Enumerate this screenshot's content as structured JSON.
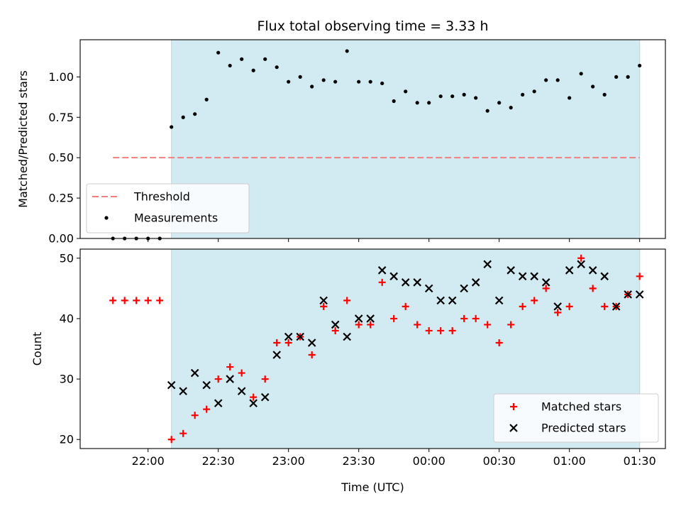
{
  "chart_data": [
    {
      "type": "scatter",
      "title": "Flux total observing time = 3.33 h",
      "xlabel": "",
      "ylabel": "Matched/Predicted stars",
      "ylim": [
        0,
        1.23
      ],
      "ytick_labels": [
        "0.00",
        "0.25",
        "0.50",
        "0.75",
        "1.00"
      ],
      "yticks": [
        0,
        0.25,
        0.5,
        0.75,
        1.0
      ],
      "xlim": [
        "21:31",
        "01:41"
      ],
      "shaded_region": {
        "start": "22:10",
        "end": "01:30",
        "color": "#add8e6"
      },
      "legend_position": "lower-left",
      "threshold": {
        "name": "Threshold",
        "value": 0.5,
        "start": "21:45",
        "end": "01:30",
        "color": "#f08080"
      },
      "series": [
        {
          "name": "Measurements",
          "color": "#000000",
          "x": [
            "21:45",
            "21:50",
            "21:55",
            "22:00",
            "22:05",
            "22:10",
            "22:15",
            "22:20",
            "22:25",
            "22:30",
            "22:35",
            "22:40",
            "22:45",
            "22:50",
            "22:55",
            "23:00",
            "23:05",
            "23:10",
            "23:15",
            "23:20",
            "23:25",
            "23:30",
            "23:35",
            "23:40",
            "23:45",
            "23:50",
            "23:55",
            "00:00",
            "00:05",
            "00:10",
            "00:15",
            "00:20",
            "00:25",
            "00:30",
            "00:35",
            "00:40",
            "00:45",
            "00:50",
            "00:55",
            "01:00",
            "01:05",
            "01:10",
            "01:15",
            "01:20",
            "01:25",
            "01:30"
          ],
          "values": [
            0,
            0,
            0,
            0,
            0,
            0.69,
            0.75,
            0.77,
            0.86,
            1.15,
            1.07,
            1.11,
            1.04,
            1.11,
            1.06,
            0.97,
            1.0,
            0.94,
            0.98,
            0.97,
            1.16,
            0.97,
            0.97,
            0.96,
            0.85,
            0.91,
            0.84,
            0.84,
            0.88,
            0.88,
            0.89,
            0.87,
            0.79,
            0.84,
            0.81,
            0.89,
            0.91,
            0.98,
            0.98,
            0.87,
            1.02,
            0.94,
            0.89,
            1.0,
            1.0,
            1.07
          ]
        }
      ]
    },
    {
      "type": "scatter",
      "title": "",
      "xlabel": "Time (UTC)",
      "ylabel": "Count",
      "ylim": [
        18.5,
        51.5
      ],
      "ytick_labels": [
        "20",
        "30",
        "40",
        "50"
      ],
      "yticks": [
        20,
        30,
        40,
        50
      ],
      "xlim": [
        "21:31",
        "01:41"
      ],
      "xtick_labels": [
        "22:00",
        "22:30",
        "23:00",
        "23:30",
        "00:00",
        "00:30",
        "01:00",
        "01:30"
      ],
      "shaded_region": {
        "start": "22:10",
        "end": "01:30",
        "color": "#add8e6"
      },
      "legend_position": "lower-right",
      "series": [
        {
          "name": "Matched stars",
          "marker": "plus",
          "color": "#ff0000",
          "x": [
            "21:45",
            "21:50",
            "21:55",
            "22:00",
            "22:05",
            "22:10",
            "22:15",
            "22:20",
            "22:25",
            "22:30",
            "22:35",
            "22:40",
            "22:45",
            "22:50",
            "22:55",
            "23:00",
            "23:05",
            "23:10",
            "23:15",
            "23:20",
            "23:25",
            "23:30",
            "23:35",
            "23:40",
            "23:45",
            "23:50",
            "23:55",
            "00:00",
            "00:05",
            "00:10",
            "00:15",
            "00:20",
            "00:25",
            "00:30",
            "00:35",
            "00:40",
            "00:45",
            "00:50",
            "00:55",
            "01:00",
            "01:05",
            "01:10",
            "01:15",
            "01:20",
            "01:25",
            "01:30"
          ],
          "values": [
            43,
            43,
            43,
            43,
            43,
            20,
            21,
            24,
            25,
            30,
            32,
            31,
            27,
            30,
            36,
            36,
            37,
            34,
            42,
            38,
            43,
            39,
            39,
            46,
            40,
            42,
            39,
            38,
            38,
            38,
            40,
            40,
            39,
            36,
            39,
            42,
            43,
            45,
            41,
            42,
            50,
            45,
            42,
            42,
            44,
            47
          ]
        },
        {
          "name": "Predicted stars",
          "marker": "x",
          "color": "#000000",
          "x": [
            "22:10",
            "22:15",
            "22:20",
            "22:25",
            "22:30",
            "22:35",
            "22:40",
            "22:45",
            "22:50",
            "22:55",
            "23:00",
            "23:05",
            "23:10",
            "23:15",
            "23:20",
            "23:25",
            "23:30",
            "23:35",
            "23:40",
            "23:45",
            "23:50",
            "23:55",
            "00:00",
            "00:05",
            "00:10",
            "00:15",
            "00:20",
            "00:25",
            "00:30",
            "00:35",
            "00:40",
            "00:45",
            "00:50",
            "00:55",
            "01:00",
            "01:05",
            "01:10",
            "01:15",
            "01:20",
            "01:25",
            "01:30"
          ],
          "values": [
            29,
            28,
            31,
            29,
            26,
            30,
            28,
            26,
            27,
            34,
            37,
            37,
            36,
            43,
            39,
            37,
            40,
            40,
            48,
            47,
            46,
            46,
            45,
            43,
            43,
            45,
            46,
            49,
            43,
            48,
            47,
            47,
            46,
            42,
            48,
            49,
            48,
            47,
            42,
            44,
            44
          ]
        }
      ]
    }
  ]
}
